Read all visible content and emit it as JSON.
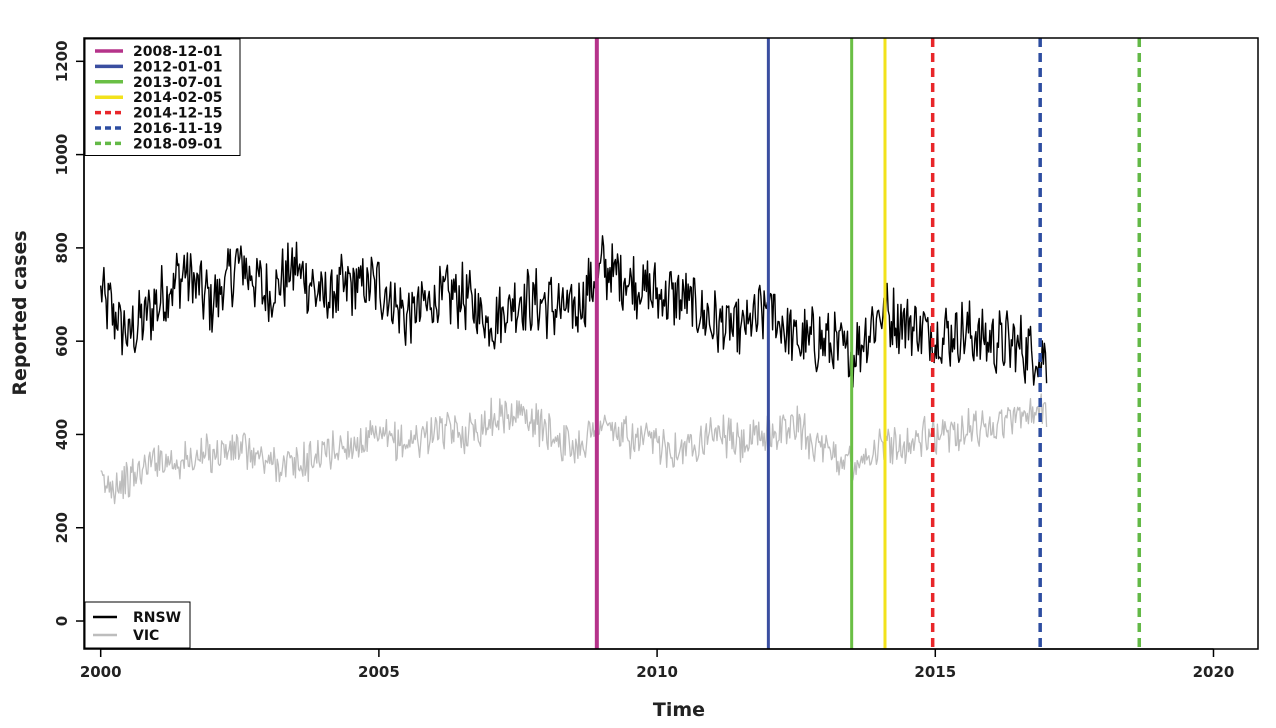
{
  "chart_data": {
    "type": "line",
    "title": "",
    "xlabel": "Time",
    "ylabel": "Reported cases",
    "xlim": [
      1999.7,
      2020.8
    ],
    "ylim": [
      -60,
      1250
    ],
    "x_ticks": [
      2000,
      2005,
      2010,
      2015,
      2020
    ],
    "x_tick_labels": [
      "2000",
      "2005",
      "2010",
      "2015",
      "2020"
    ],
    "y_ticks": [
      0,
      200,
      400,
      600,
      800,
      1000,
      1200
    ],
    "y_tick_labels": [
      "0",
      "200",
      "400",
      "600",
      "800",
      "1000",
      "1200"
    ],
    "grid": false,
    "series": [
      {
        "name": "RNSW",
        "color": "#000000",
        "x_start": 2000.0,
        "x_step": 0.5,
        "values": [
          700,
          610,
          680,
          750,
          680,
          770,
          700,
          760,
          690,
          720,
          720,
          650,
          690,
          700,
          640,
          690,
          680,
          660,
          760,
          730,
          700,
          690,
          640,
          620,
          670,
          600,
          600,
          570,
          660,
          640,
          610,
          620,
          600,
          590,
          560
        ]
      },
      {
        "name": "VIC",
        "color": "#bdbdbd",
        "x_start": 2000.0,
        "x_step": 0.5,
        "values": [
          290,
          300,
          350,
          340,
          360,
          370,
          340,
          330,
          360,
          380,
          390,
          380,
          410,
          400,
          430,
          450,
          410,
          370,
          420,
          390,
          380,
          370,
          410,
          380,
          400,
          420,
          360,
          340,
          370,
          380,
          400,
          410,
          420,
          440,
          460
        ]
      }
    ],
    "vertical_lines": [
      {
        "label": "2008-12-01",
        "x": 2008.917,
        "color": "#b5338a",
        "dashed": false,
        "width": 4
      },
      {
        "label": "2012-01-01",
        "x": 2012.0,
        "color": "#3a4ea0",
        "dashed": false,
        "width": 3
      },
      {
        "label": "2013-07-01",
        "x": 2013.497,
        "color": "#6abf45",
        "dashed": false,
        "width": 3
      },
      {
        "label": "2014-02-05",
        "x": 2014.096,
        "color": "#f2e21b",
        "dashed": false,
        "width": 3
      },
      {
        "label": "2014-12-15",
        "x": 2014.953,
        "color": "#e8262a",
        "dashed": true,
        "width": 3.5
      },
      {
        "label": "2016-11-19",
        "x": 2016.885,
        "color": "#2d4da0",
        "dashed": true,
        "width": 3.5
      },
      {
        "label": "2018-09-01",
        "x": 2018.666,
        "color": "#63b947",
        "dashed": true,
        "width": 3.5
      }
    ],
    "legend_dates": {
      "placement": "top-left",
      "entries": [
        "2008-12-01",
        "2012-01-01",
        "2013-07-01",
        "2014-02-05",
        "2014-12-15",
        "2016-11-19",
        "2018-09-01"
      ]
    },
    "legend_series": {
      "placement": "bottom-left",
      "entries": [
        "RNSW",
        "VIC"
      ]
    }
  }
}
